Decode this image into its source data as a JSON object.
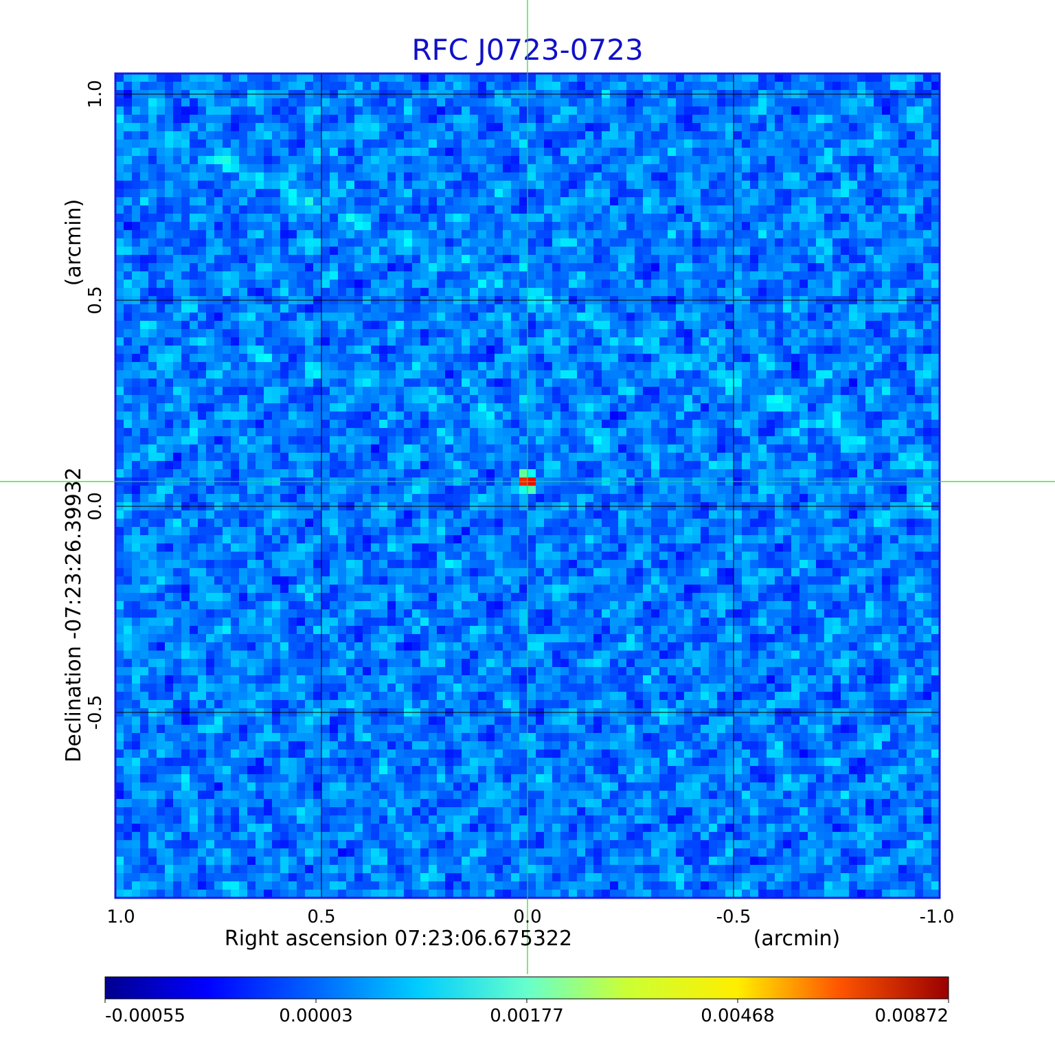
{
  "chart_data": {
    "type": "heatmap",
    "title": "RFC J0723-0723",
    "xlabel": "Right ascension  07:23:06.675322",
    "xunit": "(arcmin)",
    "ylabel": "Declination  -07:23:26.39932",
    "yunit": "(arcmin)",
    "xlim": [
      1.0,
      -1.0
    ],
    "ylim": [
      -0.95,
      1.05
    ],
    "xticks": [
      {
        "value": 1.0,
        "label": "1.0"
      },
      {
        "value": 0.5,
        "label": "0.5"
      },
      {
        "value": 0.0,
        "label": "0.0"
      },
      {
        "value": -0.5,
        "label": "-0.5"
      },
      {
        "value": -1.0,
        "label": "-1.0"
      }
    ],
    "yticks": [
      {
        "value": 1.0,
        "label": "1.0"
      },
      {
        "value": 0.5,
        "label": "0.5"
      },
      {
        "value": 0.0,
        "label": "0.0"
      },
      {
        "value": -0.5,
        "label": "-0.5"
      }
    ],
    "grid": true,
    "source_peak": {
      "x": 0.0,
      "y": 0.06,
      "value": 0.00872
    },
    "crosshair": {
      "x": 0.0,
      "y": 0.06
    },
    "colorbar": {
      "colormap": "jet",
      "ticks": [
        "-0.00055",
        "0.00003",
        "0.00177",
        "0.00468",
        "0.00872"
      ]
    },
    "colors": {
      "title": "#1010c8",
      "frame": "#1a1adc",
      "crosshair": "#22dd22",
      "grid": "#000000"
    }
  }
}
